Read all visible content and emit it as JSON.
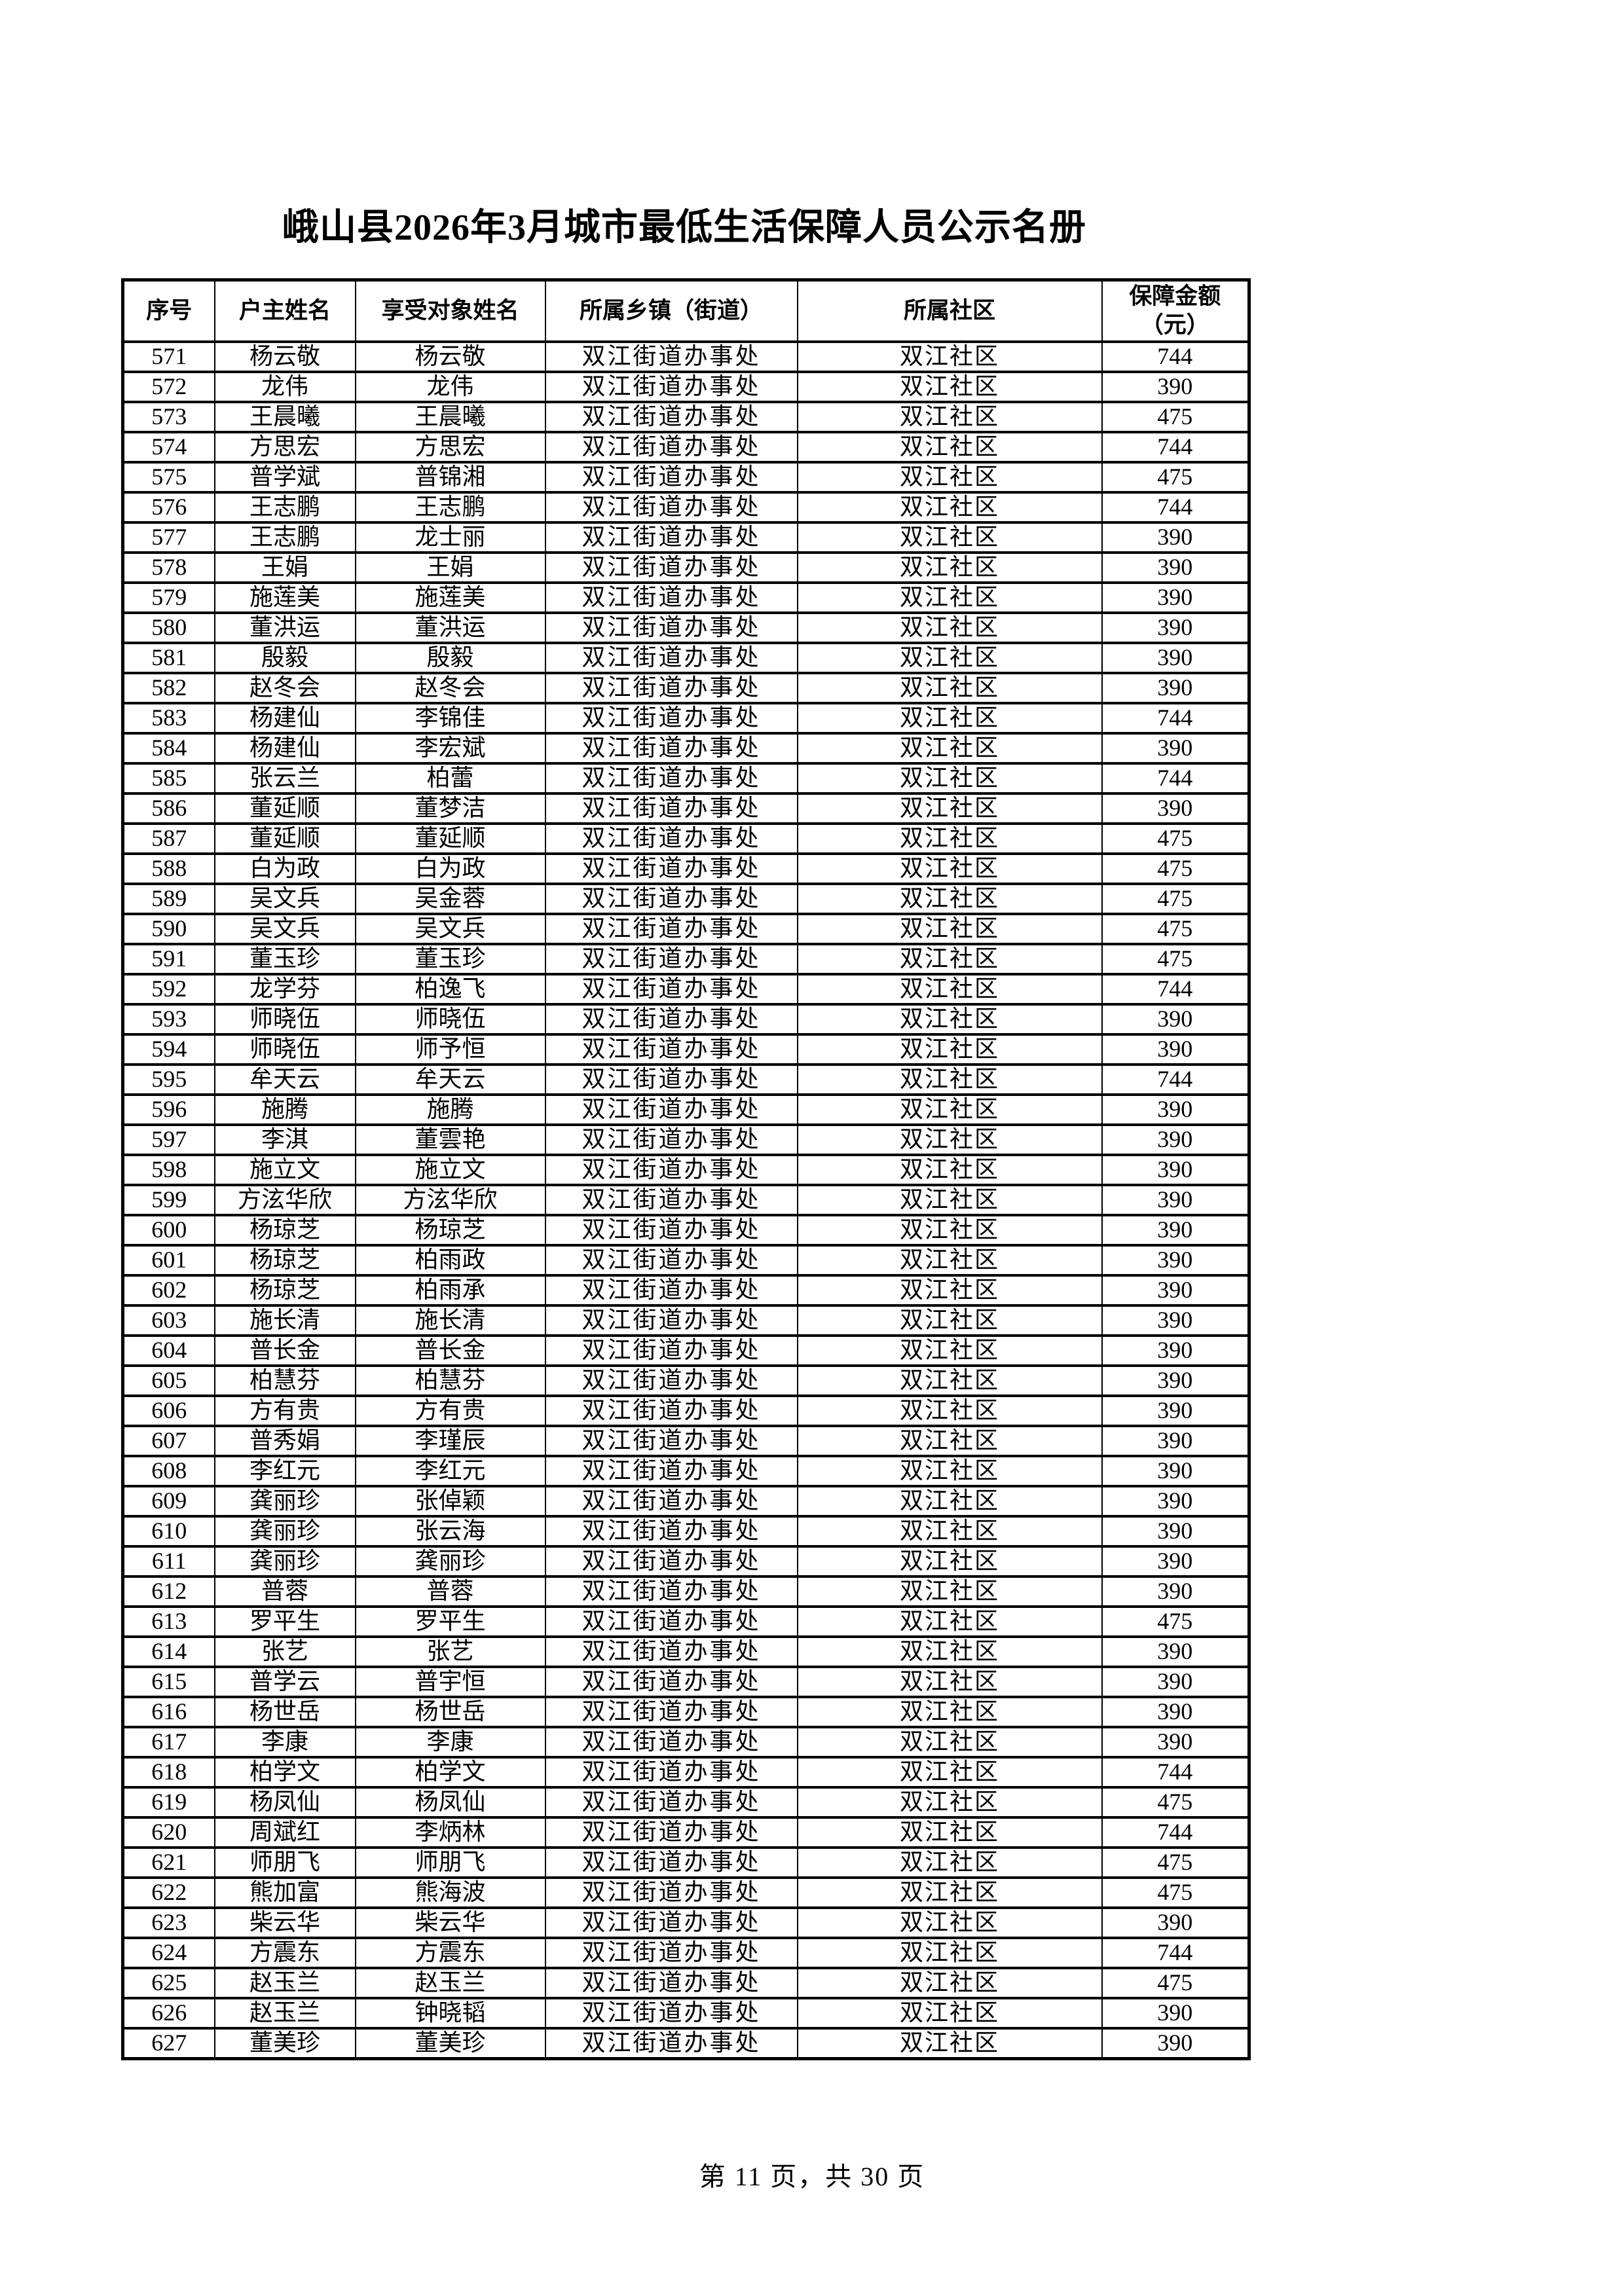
{
  "title": "峨山县2026年3月城市最低生活保障人员公示名册",
  "table": {
    "headers": [
      "序号",
      "户主姓名",
      "享受对象姓名",
      "所属乡镇（街道）",
      "所属社区",
      "保障金额\n（元）"
    ],
    "rows": [
      [
        571,
        "杨云敬",
        "杨云敬",
        "双江街道办事处",
        "双江社区",
        744
      ],
      [
        572,
        "龙伟",
        "龙伟",
        "双江街道办事处",
        "双江社区",
        390
      ],
      [
        573,
        "王晨曦",
        "王晨曦",
        "双江街道办事处",
        "双江社区",
        475
      ],
      [
        574,
        "方思宏",
        "方思宏",
        "双江街道办事处",
        "双江社区",
        744
      ],
      [
        575,
        "普学斌",
        "普锦湘",
        "双江街道办事处",
        "双江社区",
        475
      ],
      [
        576,
        "王志鹏",
        "王志鹏",
        "双江街道办事处",
        "双江社区",
        744
      ],
      [
        577,
        "王志鹏",
        "龙士丽",
        "双江街道办事处",
        "双江社区",
        390
      ],
      [
        578,
        "王娟",
        "王娟",
        "双江街道办事处",
        "双江社区",
        390
      ],
      [
        579,
        "施莲美",
        "施莲美",
        "双江街道办事处",
        "双江社区",
        390
      ],
      [
        580,
        "董洪运",
        "董洪运",
        "双江街道办事处",
        "双江社区",
        390
      ],
      [
        581,
        "殷毅",
        "殷毅",
        "双江街道办事处",
        "双江社区",
        390
      ],
      [
        582,
        "赵冬会",
        "赵冬会",
        "双江街道办事处",
        "双江社区",
        390
      ],
      [
        583,
        "杨建仙",
        "李锦佳",
        "双江街道办事处",
        "双江社区",
        744
      ],
      [
        584,
        "杨建仙",
        "李宏斌",
        "双江街道办事处",
        "双江社区",
        390
      ],
      [
        585,
        "张云兰",
        "柏蕾",
        "双江街道办事处",
        "双江社区",
        744
      ],
      [
        586,
        "董延顺",
        "董梦洁",
        "双江街道办事处",
        "双江社区",
        390
      ],
      [
        587,
        "董延顺",
        "董延顺",
        "双江街道办事处",
        "双江社区",
        475
      ],
      [
        588,
        "白为政",
        "白为政",
        "双江街道办事处",
        "双江社区",
        475
      ],
      [
        589,
        "吴文兵",
        "吴金蓉",
        "双江街道办事处",
        "双江社区",
        475
      ],
      [
        590,
        "吴文兵",
        "吴文兵",
        "双江街道办事处",
        "双江社区",
        475
      ],
      [
        591,
        "董玉珍",
        "董玉珍",
        "双江街道办事处",
        "双江社区",
        475
      ],
      [
        592,
        "龙学芬",
        "柏逸飞",
        "双江街道办事处",
        "双江社区",
        744
      ],
      [
        593,
        "师晓伍",
        "师晓伍",
        "双江街道办事处",
        "双江社区",
        390
      ],
      [
        594,
        "师晓伍",
        "师予恒",
        "双江街道办事处",
        "双江社区",
        390
      ],
      [
        595,
        "牟天云",
        "牟天云",
        "双江街道办事处",
        "双江社区",
        744
      ],
      [
        596,
        "施腾",
        "施腾",
        "双江街道办事处",
        "双江社区",
        390
      ],
      [
        597,
        "李淇",
        "董雲艳",
        "双江街道办事处",
        "双江社区",
        390
      ],
      [
        598,
        "施立文",
        "施立文",
        "双江街道办事处",
        "双江社区",
        390
      ],
      [
        599,
        "方泫华欣",
        "方泫华欣",
        "双江街道办事处",
        "双江社区",
        390
      ],
      [
        600,
        "杨琼芝",
        "杨琼芝",
        "双江街道办事处",
        "双江社区",
        390
      ],
      [
        601,
        "杨琼芝",
        "柏雨政",
        "双江街道办事处",
        "双江社区",
        390
      ],
      [
        602,
        "杨琼芝",
        "柏雨承",
        "双江街道办事处",
        "双江社区",
        390
      ],
      [
        603,
        "施长清",
        "施长清",
        "双江街道办事处",
        "双江社区",
        390
      ],
      [
        604,
        "普长金",
        "普长金",
        "双江街道办事处",
        "双江社区",
        390
      ],
      [
        605,
        "柏慧芬",
        "柏慧芬",
        "双江街道办事处",
        "双江社区",
        390
      ],
      [
        606,
        "方有贵",
        "方有贵",
        "双江街道办事处",
        "双江社区",
        390
      ],
      [
        607,
        "普秀娟",
        "李瑾辰",
        "双江街道办事处",
        "双江社区",
        390
      ],
      [
        608,
        "李红元",
        "李红元",
        "双江街道办事处",
        "双江社区",
        390
      ],
      [
        609,
        "龚丽珍",
        "张倬颖",
        "双江街道办事处",
        "双江社区",
        390
      ],
      [
        610,
        "龚丽珍",
        "张云海",
        "双江街道办事处",
        "双江社区",
        390
      ],
      [
        611,
        "龚丽珍",
        "龚丽珍",
        "双江街道办事处",
        "双江社区",
        390
      ],
      [
        612,
        "普蓉",
        "普蓉",
        "双江街道办事处",
        "双江社区",
        390
      ],
      [
        613,
        "罗平生",
        "罗平生",
        "双江街道办事处",
        "双江社区",
        475
      ],
      [
        614,
        "张艺",
        "张艺",
        "双江街道办事处",
        "双江社区",
        390
      ],
      [
        615,
        "普学云",
        "普宇恒",
        "双江街道办事处",
        "双江社区",
        390
      ],
      [
        616,
        "杨世岳",
        "杨世岳",
        "双江街道办事处",
        "双江社区",
        390
      ],
      [
        617,
        "李康",
        "李康",
        "双江街道办事处",
        "双江社区",
        390
      ],
      [
        618,
        "柏学文",
        "柏学文",
        "双江街道办事处",
        "双江社区",
        744
      ],
      [
        619,
        "杨凤仙",
        "杨凤仙",
        "双江街道办事处",
        "双江社区",
        475
      ],
      [
        620,
        "周斌红",
        "李炳林",
        "双江街道办事处",
        "双江社区",
        744
      ],
      [
        621,
        "师朋飞",
        "师朋飞",
        "双江街道办事处",
        "双江社区",
        475
      ],
      [
        622,
        "熊加富",
        "熊海波",
        "双江街道办事处",
        "双江社区",
        475
      ],
      [
        623,
        "柴云华",
        "柴云华",
        "双江街道办事处",
        "双江社区",
        390
      ],
      [
        624,
        "方震东",
        "方震东",
        "双江街道办事处",
        "双江社区",
        744
      ],
      [
        625,
        "赵玉兰",
        "赵玉兰",
        "双江街道办事处",
        "双江社区",
        475
      ],
      [
        626,
        "赵玉兰",
        "钟晓韬",
        "双江街道办事处",
        "双江社区",
        390
      ],
      [
        627,
        "董美珍",
        "董美珍",
        "双江街道办事处",
        "双江社区",
        390
      ]
    ]
  },
  "footer": "第 11 页，共 30 页"
}
